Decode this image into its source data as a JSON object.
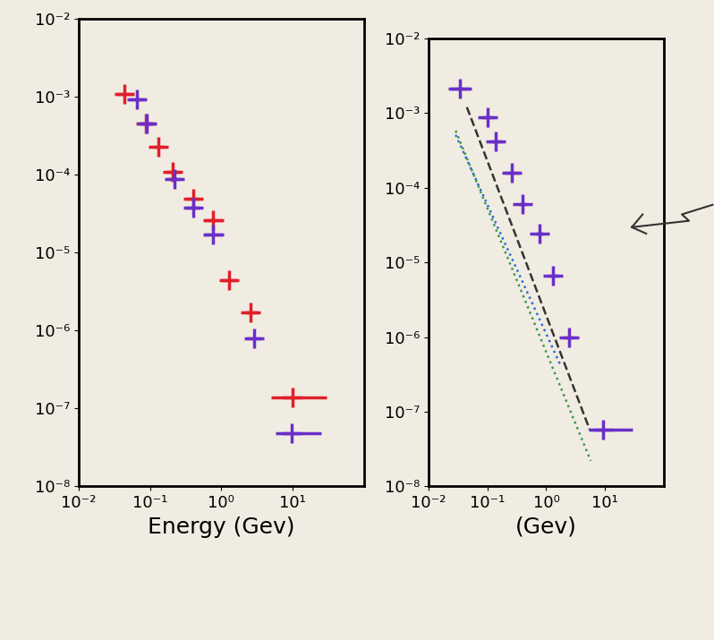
{
  "chart_data": [
    {
      "type": "scatter",
      "xlabel": "Energy (Gev)",
      "log": true,
      "xlim": [
        0.01,
        100
      ],
      "ylim": [
        1e-08,
        0.01
      ],
      "xticks": [
        {
          "value": 0.01,
          "label": "10⁻²"
        },
        {
          "value": 0.1,
          "label": "10⁻¹"
        },
        {
          "value": 1,
          "label": "10⁰"
        },
        {
          "value": 10,
          "label": "10¹"
        }
      ],
      "yticks": [
        {
          "value": 1e-08,
          "label": "10⁻⁸"
        },
        {
          "value": 1e-07,
          "label": "10⁻⁷"
        },
        {
          "value": 1e-06,
          "label": "10⁻⁶"
        },
        {
          "value": 1e-05,
          "label": "10⁻⁵"
        },
        {
          "value": 0.0001,
          "label": "10⁻⁴"
        },
        {
          "value": 0.001,
          "label": "10⁻³"
        },
        {
          "value": 0.01,
          "label": "10⁻²"
        }
      ],
      "series": [
        {
          "type": "scatter",
          "color": "#e0202a",
          "marker": "plus",
          "x": [
            0.044,
            0.087,
            0.13,
            0.21,
            0.4,
            0.77,
            1.3,
            2.6,
            10
          ],
          "values": [
            0.0011,
            0.00046,
            0.00023,
            0.00011,
            4.9e-05,
            2.6e-05,
            4.4e-06,
            1.7e-06,
            1.4e-07
          ],
          "xerr": [
            [
              0.01,
              0.015,
              0.02,
              0.04,
              0.08,
              0.2,
              0.3,
              0.5,
              5
            ],
            [
              0.015,
              0.02,
              0.03,
              0.05,
              0.1,
              0.3,
              0.3,
              0.6,
              20
            ]
          ]
        },
        {
          "type": "scatter",
          "color": "#6a2fc8",
          "marker": "plus",
          "x": [
            0.065,
            0.091,
            0.22,
            0.4,
            0.77,
            2.9,
            9.8
          ],
          "values": [
            0.00093,
            0.00046,
            8.9e-05,
            3.8e-05,
            1.7e-05,
            7.9e-07,
            4.8e-08
          ],
          "xerr": [
            [
              0.015,
              0.015,
              0.04,
              0.08,
              0.2,
              0.6,
              4
            ],
            [
              0.02,
              0.02,
              0.05,
              0.1,
              0.3,
              0.7,
              15
            ]
          ]
        }
      ]
    },
    {
      "type": "scatter",
      "xlabel": "(Gev)",
      "log": true,
      "xlim": [
        0.01,
        100
      ],
      "ylim": [
        1e-08,
        0.01
      ],
      "xticks": [
        {
          "value": 0.01,
          "label": "10⁻²"
        },
        {
          "value": 0.1,
          "label": "10⁻¹"
        },
        {
          "value": 1,
          "label": "10⁰"
        },
        {
          "value": 10,
          "label": "10¹"
        }
      ],
      "yticks": [
        {
          "value": 1e-08,
          "label": "10⁻⁸"
        },
        {
          "value": 1e-07,
          "label": "10⁻⁷"
        },
        {
          "value": 1e-06,
          "label": "10⁻⁶"
        },
        {
          "value": 1e-05,
          "label": "10⁻⁵"
        },
        {
          "value": 0.0001,
          "label": "10⁻⁴"
        },
        {
          "value": 0.001,
          "label": "10⁻³"
        },
        {
          "value": 0.01,
          "label": "10⁻²"
        }
      ],
      "series": [
        {
          "type": "line",
          "color": "#333333",
          "line_style": "dashed",
          "x": [
            0.045,
            5.5
          ],
          "values": [
            0.0012,
            5.7e-08
          ]
        },
        {
          "type": "line",
          "color": "#2a6fd6",
          "line_style": "dotted",
          "x": [
            0.029,
            1.7
          ],
          "values": [
            0.00051,
            4.4e-07
          ]
        },
        {
          "type": "line",
          "color": "#3a9a4a",
          "line_style": "dotted",
          "x": [
            0.029,
            5.7
          ],
          "values": [
            0.00058,
            2.2e-08
          ]
        },
        {
          "type": "scatter",
          "color": "#6a2fc8",
          "marker": "plus",
          "x": [
            0.034,
            0.1,
            0.14,
            0.26,
            0.39,
            0.76,
            1.3,
            2.4,
            9.3
          ],
          "values": [
            0.0021,
            0.00087,
            0.00042,
            0.00016,
            6.1e-05,
            2.4e-05,
            6.7e-06,
            1e-06,
            5.7e-08
          ],
          "xerr": [
            [
              0.012,
              0.02,
              0.03,
              0.06,
              0.05,
              0.1,
              0.2,
              0.4,
              4
            ],
            [
              0.02,
              0.03,
              0.04,
              0.08,
              0.06,
              0.12,
              0.3,
              0.5,
              20
            ]
          ]
        }
      ]
    }
  ]
}
